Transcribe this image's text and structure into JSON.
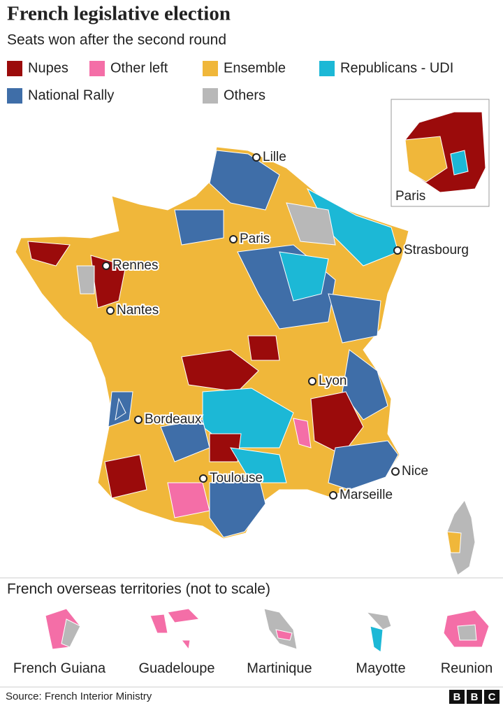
{
  "header": {
    "title": "French legislative election",
    "subtitle": "Seats won after the second round"
  },
  "legend": {
    "items": [
      {
        "label": "Nupes",
        "color": "#9b0b0b"
      },
      {
        "label": "Other left",
        "color": "#f46ea7"
      },
      {
        "label": "Ensemble",
        "color": "#f0b73a"
      },
      {
        "label": "Republicans - UDI",
        "color": "#1cb8d6"
      },
      {
        "label": "National Rally",
        "color": "#3f6ea8"
      },
      {
        "label": "Others",
        "color": "#b8b8b8"
      }
    ]
  },
  "map": {
    "cities": [
      "Lille",
      "Paris",
      "Strasbourg",
      "Rennes",
      "Nantes",
      "Lyon",
      "Bordeaux",
      "Toulouse",
      "Nice",
      "Marseille"
    ],
    "inset_label": "Paris"
  },
  "overseas": {
    "title": "French overseas territories (not to scale)",
    "territories": [
      "French Guiana",
      "Guadeloupe",
      "Martinique",
      "Mayotte",
      "Reunion"
    ]
  },
  "footer": {
    "source": "Source: French Interior Ministry",
    "logo": [
      "B",
      "B",
      "C"
    ]
  }
}
